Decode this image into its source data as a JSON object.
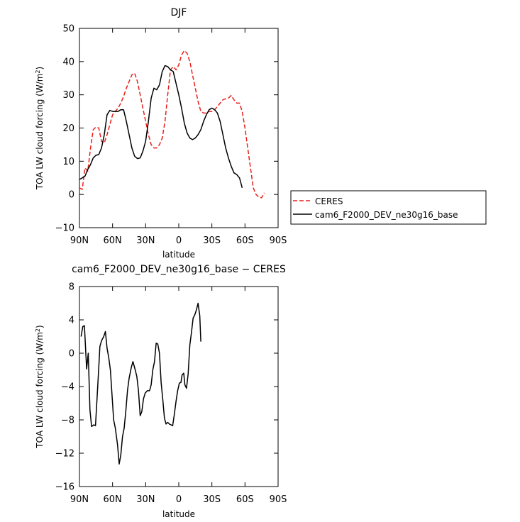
{
  "chart_data": [
    {
      "type": "line",
      "title": "DJF",
      "xlabel": "latitude",
      "ylabel_main": "TOA LW cloud forcing (W/m",
      "ylabel_sup": "2",
      "ylabel_close": ")",
      "xlim": [
        90,
        -90
      ],
      "ylim": [
        -10,
        50
      ],
      "xticks": [
        90,
        60,
        30,
        0,
        -30,
        -60,
        -90
      ],
      "xtick_labels": [
        "90N",
        "60N",
        "30N",
        "0",
        "30S",
        "60S",
        "90S"
      ],
      "yticks": [
        -10,
        0,
        10,
        20,
        30,
        40,
        50
      ],
      "ytick_labels": [
        "−10",
        "0",
        "10",
        "20",
        "30",
        "40",
        "50"
      ],
      "grid": false,
      "legend_position": "right",
      "series": [
        {
          "name": "CERES",
          "color": "#e8201c",
          "style": "dashed",
          "points": [
            [
              90,
              2
            ],
            [
              87.5,
              1.5
            ],
            [
              85,
              8
            ],
            [
              82.5,
              7
            ],
            [
              80,
              14
            ],
            [
              77.5,
              19.5
            ],
            [
              75,
              20.3
            ],
            [
              72.5,
              20
            ],
            [
              70,
              16
            ],
            [
              67.5,
              15.5
            ],
            [
              65,
              18
            ],
            [
              62.5,
              21
            ],
            [
              60,
              24
            ],
            [
              57.5,
              25
            ],
            [
              55,
              26
            ],
            [
              52.5,
              27.5
            ],
            [
              50,
              29.5
            ],
            [
              47.5,
              32
            ],
            [
              45,
              34
            ],
            [
              42.5,
              36
            ],
            [
              40,
              36.5
            ],
            [
              37.5,
              34
            ],
            [
              35,
              30
            ],
            [
              32.5,
              26
            ],
            [
              30,
              22
            ],
            [
              27.5,
              18
            ],
            [
              25,
              15
            ],
            [
              22.5,
              14
            ],
            [
              20,
              14
            ],
            [
              17.5,
              15
            ],
            [
              15,
              17
            ],
            [
              12.5,
              22
            ],
            [
              10,
              30
            ],
            [
              7.5,
              37.5
            ],
            [
              5,
              38.5
            ],
            [
              2.5,
              37.5
            ],
            [
              0,
              39
            ],
            [
              -2.5,
              42
            ],
            [
              -5,
              43.3
            ],
            [
              -7.5,
              42.5
            ],
            [
              -10,
              40
            ],
            [
              -12.5,
              36
            ],
            [
              -15,
              32
            ],
            [
              -17.5,
              28
            ],
            [
              -20,
              25
            ],
            [
              -22.5,
              24.5
            ],
            [
              -25,
              24.5
            ],
            [
              -27.5,
              25
            ],
            [
              -30,
              25
            ],
            [
              -32.5,
              25.5
            ],
            [
              -35,
              26.5
            ],
            [
              -37.5,
              27.5
            ],
            [
              -40,
              28.5
            ],
            [
              -42.5,
              28.8
            ],
            [
              -45,
              29
            ],
            [
              -47.5,
              29.8
            ],
            [
              -50,
              28.5
            ],
            [
              -52.5,
              27.5
            ],
            [
              -55,
              27.5
            ],
            [
              -57.5,
              25
            ],
            [
              -60,
              20
            ],
            [
              -62.5,
              14
            ],
            [
              -65,
              8
            ],
            [
              -67.5,
              2
            ],
            [
              -70,
              0
            ],
            [
              -72.5,
              -0.8
            ],
            [
              -75,
              -1
            ],
            [
              -77.5,
              0.5
            ]
          ]
        },
        {
          "name": "cam6_F2000_DEV_ne30g16_base",
          "color": "#000000",
          "style": "solid",
          "points": [
            [
              90,
              4.5
            ],
            [
              87.5,
              5
            ],
            [
              85,
              5.5
            ],
            [
              82.5,
              7.5
            ],
            [
              80,
              9
            ],
            [
              77.5,
              11
            ],
            [
              75,
              11.8
            ],
            [
              72.5,
              12
            ],
            [
              70,
              14
            ],
            [
              67.5,
              18
            ],
            [
              65,
              24
            ],
            [
              62.5,
              25.3
            ],
            [
              60,
              25
            ],
            [
              57.5,
              25
            ],
            [
              55,
              25
            ],
            [
              52.5,
              25.5
            ],
            [
              50,
              25.5
            ],
            [
              47.5,
              22
            ],
            [
              45,
              18
            ],
            [
              42.5,
              14
            ],
            [
              40,
              11.5
            ],
            [
              37.5,
              10.8
            ],
            [
              35,
              11
            ],
            [
              32.5,
              13
            ],
            [
              30,
              16
            ],
            [
              27.5,
              22
            ],
            [
              25,
              29
            ],
            [
              22.5,
              32
            ],
            [
              20,
              31.5
            ],
            [
              17.5,
              33
            ],
            [
              15,
              37
            ],
            [
              12.5,
              38.8
            ],
            [
              10,
              38.5
            ],
            [
              7.5,
              37.5
            ],
            [
              5,
              37
            ],
            [
              2.5,
              33.5
            ],
            [
              0,
              30
            ],
            [
              -2.5,
              26
            ],
            [
              -5,
              21.5
            ],
            [
              -7.5,
              18.5
            ],
            [
              -10,
              17
            ],
            [
              -12.5,
              16.5
            ],
            [
              -15,
              17
            ],
            [
              -17.5,
              18
            ],
            [
              -20,
              19.5
            ],
            [
              -22.5,
              22
            ],
            [
              -25,
              24
            ],
            [
              -27.5,
              25.5
            ],
            [
              -30,
              26
            ],
            [
              -32.5,
              25.5
            ],
            [
              -35,
              24.5
            ],
            [
              -37.5,
              22
            ],
            [
              -40,
              18
            ],
            [
              -42.5,
              14
            ],
            [
              -45,
              11
            ],
            [
              -47.5,
              8.5
            ],
            [
              -50,
              6.5
            ],
            [
              -52.5,
              6
            ],
            [
              -55,
              5
            ],
            [
              -57.5,
              2
            ]
          ]
        }
      ]
    },
    {
      "type": "line",
      "title": "cam6_F2000_DEV_ne30g16_base − CERES",
      "xlabel": "latitude",
      "ylabel_main": "TOA LW cloud forcing (W/m",
      "ylabel_sup": "2",
      "ylabel_close": ")",
      "xlim": [
        90,
        -90
      ],
      "ylim": [
        -16,
        8
      ],
      "xticks": [
        90,
        60,
        30,
        0,
        -30,
        -60,
        -90
      ],
      "xtick_labels": [
        "90N",
        "60N",
        "30N",
        "0",
        "30S",
        "60S",
        "90S"
      ],
      "yticks": [
        -16,
        -12,
        -8,
        -4,
        0,
        4,
        8
      ],
      "ytick_labels": [
        "−16",
        "−12",
        "−8",
        "−4",
        "0",
        "4",
        "8"
      ],
      "grid": false,
      "series": [
        {
          "color": "#000000",
          "style": "solid",
          "points": [
            [
              88.5,
              2
            ],
            [
              87,
              3.2
            ],
            [
              85.5,
              3.3
            ],
            [
              83.5,
              -1.9
            ],
            [
              82,
              0
            ],
            [
              80.5,
              -6.8
            ],
            [
              79,
              -8.8
            ],
            [
              77,
              -8.6
            ],
            [
              75.5,
              -8.7
            ],
            [
              73,
              -3
            ],
            [
              71.5,
              0.8
            ],
            [
              70,
              1.5
            ],
            [
              68,
              2
            ],
            [
              66.5,
              2.6
            ],
            [
              65,
              0.6
            ],
            [
              63.5,
              -0.5
            ],
            [
              62,
              -2
            ],
            [
              60.5,
              -5
            ],
            [
              59,
              -8
            ],
            [
              57.5,
              -9
            ],
            [
              55.5,
              -11
            ],
            [
              54,
              -13.3
            ],
            [
              52.5,
              -12.2
            ],
            [
              51,
              -10
            ],
            [
              49.5,
              -9
            ],
            [
              48,
              -7
            ],
            [
              46.5,
              -4.5
            ],
            [
              45,
              -3
            ],
            [
              43,
              -1.7
            ],
            [
              41.5,
              -1
            ],
            [
              39.5,
              -2
            ],
            [
              38,
              -2.8
            ],
            [
              36.5,
              -4.5
            ],
            [
              35,
              -7.5
            ],
            [
              33.5,
              -7
            ],
            [
              32,
              -5.5
            ],
            [
              30.5,
              -4.8
            ],
            [
              28.5,
              -4.5
            ],
            [
              26.5,
              -4.5
            ],
            [
              25,
              -3.8
            ],
            [
              23.5,
              -2
            ],
            [
              22,
              -1
            ],
            [
              20.5,
              1.2
            ],
            [
              19,
              1.1
            ],
            [
              17.5,
              0
            ],
            [
              16,
              -3.5
            ],
            [
              14.5,
              -5.5
            ],
            [
              13,
              -7.8
            ],
            [
              11.5,
              -8.5
            ],
            [
              10,
              -8.3
            ],
            [
              8.5,
              -8.5
            ],
            [
              7,
              -8.6
            ],
            [
              5.5,
              -8.7
            ],
            [
              4,
              -7.3
            ],
            [
              2.5,
              -5.8
            ],
            [
              1,
              -4.5
            ],
            [
              -0.5,
              -3.6
            ],
            [
              -2,
              -3.5
            ],
            [
              -3,
              -2.6
            ],
            [
              -4.5,
              -2.4
            ],
            [
              -5.5,
              -3.8
            ],
            [
              -7,
              -4.2
            ],
            [
              -8.5,
              -2.5
            ],
            [
              -10,
              1
            ],
            [
              -11.5,
              2.5
            ],
            [
              -13,
              4.2
            ],
            [
              -14.5,
              4.6
            ],
            [
              -16,
              5.2
            ],
            [
              -17.5,
              6
            ],
            [
              -19,
              4.5
            ],
            [
              -20,
              1.4
            ]
          ]
        }
      ]
    }
  ]
}
